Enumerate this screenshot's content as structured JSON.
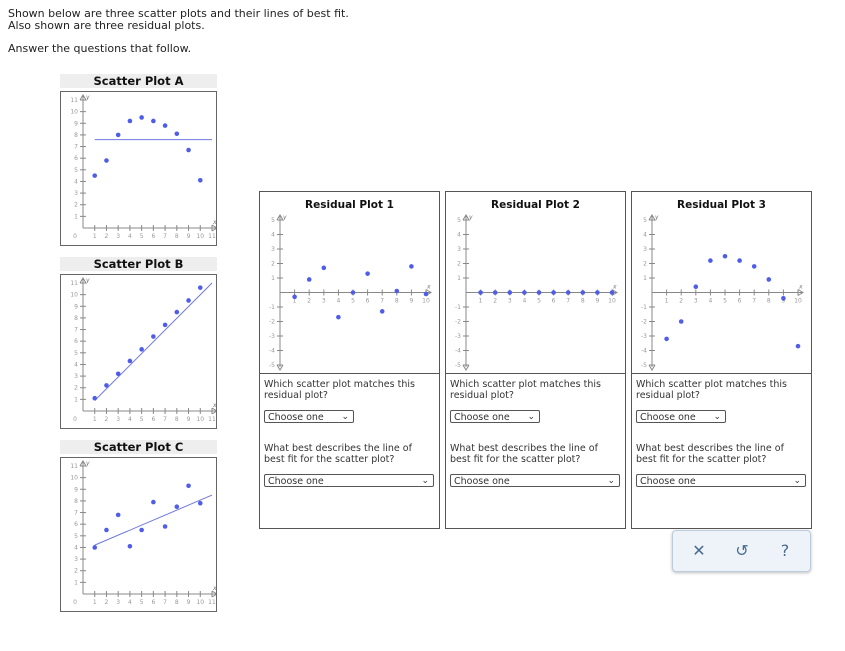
{
  "intro": {
    "line1": "Shown below are three scatter plots and their lines of best fit.",
    "line2": "Also shown are three residual plots.",
    "line3": "Answer the questions that follow."
  },
  "colors": {
    "point": "#4f5de8",
    "fit_line": "#6f78e0",
    "axis": "#888888"
  },
  "chart_data": [
    {
      "type": "scatter",
      "title": "Scatter Plot A",
      "xlabel": "x",
      "ylabel": "y",
      "xlim": [
        0,
        11
      ],
      "ylim": [
        0,
        11
      ],
      "x_ticks": [
        "1",
        "2",
        "3",
        "4",
        "5",
        "6",
        "7",
        "8",
        "9",
        "10",
        "11"
      ],
      "y_ticks": [
        "1",
        "2",
        "3",
        "4",
        "5",
        "6",
        "7",
        "8",
        "9",
        "10",
        "11"
      ],
      "origin_label": "0",
      "points": [
        [
          1,
          4.5
        ],
        [
          2,
          5.8
        ],
        [
          3,
          8
        ],
        [
          4,
          9.2
        ],
        [
          5,
          9.5
        ],
        [
          6,
          9.2
        ],
        [
          7,
          8.8
        ],
        [
          8,
          8.1
        ],
        [
          9,
          6.7
        ],
        [
          10,
          4.1
        ]
      ],
      "fit_line": [
        [
          1,
          7.6
        ],
        [
          11,
          7.6
        ]
      ]
    },
    {
      "type": "scatter",
      "title": "Scatter Plot B",
      "xlabel": "x",
      "ylabel": "y",
      "xlim": [
        0,
        11
      ],
      "ylim": [
        0,
        11
      ],
      "x_ticks": [
        "1",
        "2",
        "3",
        "4",
        "5",
        "6",
        "7",
        "8",
        "9",
        "10",
        "11"
      ],
      "y_ticks": [
        "1",
        "2",
        "3",
        "4",
        "5",
        "6",
        "7",
        "8",
        "9",
        "10",
        "11"
      ],
      "origin_label": "0",
      "points": [
        [
          1,
          1.1
        ],
        [
          2,
          2.2
        ],
        [
          3,
          3.2
        ],
        [
          4,
          4.3
        ],
        [
          5,
          5.3
        ],
        [
          6,
          6.4
        ],
        [
          7,
          7.4
        ],
        [
          8,
          8.5
        ],
        [
          9,
          9.5
        ],
        [
          10,
          10.6
        ]
      ],
      "fit_line": [
        [
          1,
          0.9
        ],
        [
          11,
          11
        ]
      ]
    },
    {
      "type": "scatter",
      "title": "Scatter Plot C",
      "xlabel": "x",
      "ylabel": "y",
      "xlim": [
        0,
        11
      ],
      "ylim": [
        0,
        11
      ],
      "x_ticks": [
        "1",
        "2",
        "3",
        "4",
        "5",
        "6",
        "7",
        "8",
        "9",
        "10",
        "11"
      ],
      "y_ticks": [
        "1",
        "2",
        "3",
        "4",
        "5",
        "6",
        "7",
        "8",
        "9",
        "10",
        "11"
      ],
      "origin_label": "0",
      "points": [
        [
          1,
          4
        ],
        [
          2,
          5.5
        ],
        [
          3,
          6.8
        ],
        [
          4,
          4.1
        ],
        [
          5,
          5.5
        ],
        [
          6,
          7.9
        ],
        [
          7,
          5.8
        ],
        [
          8,
          7.5
        ],
        [
          9,
          9.3
        ],
        [
          10,
          7.8
        ]
      ],
      "fit_line": [
        [
          1,
          4.2
        ],
        [
          11,
          8.5
        ]
      ]
    },
    {
      "type": "scatter",
      "title": "Residual Plot 1",
      "xlabel": "x",
      "ylabel": "y",
      "xlim": [
        0,
        10
      ],
      "ylim": [
        -5,
        5
      ],
      "x_ticks": [
        "1",
        "2",
        "3",
        "4",
        "5",
        "6",
        "7",
        "8",
        "9",
        "10"
      ],
      "y_ticks": [
        "-5",
        "-4",
        "-3",
        "-2",
        "-1",
        "1",
        "2",
        "3",
        "4",
        "5"
      ],
      "points": [
        [
          1,
          -0.3
        ],
        [
          2,
          0.9
        ],
        [
          3,
          1.7
        ],
        [
          4,
          -1.7
        ],
        [
          5,
          0
        ],
        [
          6,
          1.3
        ],
        [
          7,
          -1.3
        ],
        [
          8,
          0.1
        ],
        [
          9,
          1.8
        ],
        [
          10,
          -0.1
        ]
      ]
    },
    {
      "type": "scatter",
      "title": "Residual Plot 2",
      "xlabel": "x",
      "ylabel": "y",
      "xlim": [
        0,
        10
      ],
      "ylim": [
        -5,
        5
      ],
      "x_ticks": [
        "1",
        "2",
        "3",
        "4",
        "5",
        "6",
        "7",
        "8",
        "9",
        "10"
      ],
      "y_ticks": [
        "-5",
        "-4",
        "-3",
        "-2",
        "-1",
        "1",
        "2",
        "3",
        "4",
        "5"
      ],
      "points": [
        [
          1,
          0
        ],
        [
          2,
          0
        ],
        [
          3,
          0
        ],
        [
          4,
          0
        ],
        [
          5,
          0
        ],
        [
          6,
          0
        ],
        [
          7,
          0
        ],
        [
          8,
          0
        ],
        [
          9,
          0
        ],
        [
          10,
          0
        ]
      ]
    },
    {
      "type": "scatter",
      "title": "Residual Plot 3",
      "xlabel": "x",
      "ylabel": "y",
      "xlim": [
        0,
        10
      ],
      "ylim": [
        -5,
        5
      ],
      "x_ticks": [
        "1",
        "2",
        "3",
        "4",
        "5",
        "6",
        "7",
        "8",
        "9",
        "10"
      ],
      "y_ticks": [
        "-5",
        "-4",
        "-3",
        "-2",
        "-1",
        "1",
        "2",
        "3",
        "4",
        "5"
      ],
      "points": [
        [
          1,
          -3.2
        ],
        [
          2,
          -2
        ],
        [
          3,
          0.4
        ],
        [
          4,
          2.2
        ],
        [
          5,
          2.5
        ],
        [
          6,
          2.2
        ],
        [
          7,
          1.8
        ],
        [
          8,
          0.9
        ],
        [
          9,
          -0.4
        ],
        [
          10,
          -3.7
        ]
      ]
    }
  ],
  "residual_panels": [
    {
      "title": "Residual Plot 1",
      "q1": "Which scatter plot matches this residual plot?",
      "select1": "Choose one",
      "q2": "What best describes the line of best fit for the scatter plot?",
      "select2": "Choose one"
    },
    {
      "title": "Residual Plot 2",
      "q1": "Which scatter plot matches this residual plot?",
      "select1": "Choose one",
      "q2": "What best describes the line of best fit for the scatter plot?",
      "select2": "Choose one"
    },
    {
      "title": "Residual Plot 3",
      "q1": "Which scatter plot matches this residual plot?",
      "select1": "Choose one",
      "q2": "What best describes the line of best fit for the scatter plot?",
      "select2": "Choose one"
    }
  ],
  "toolbar": {
    "clear": "✕",
    "undo": "↺",
    "help": "?"
  }
}
